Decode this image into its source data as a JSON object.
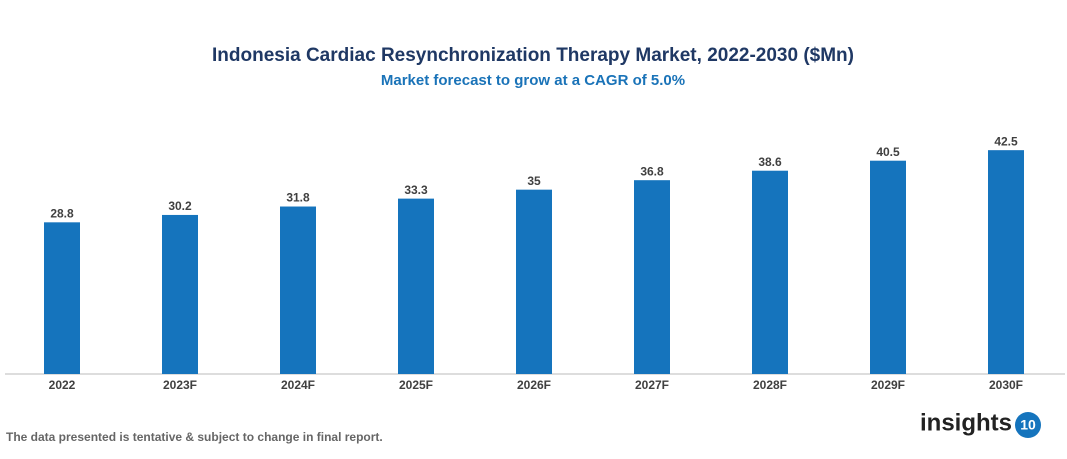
{
  "chart_data": {
    "type": "bar",
    "title": "Indonesia Cardiac Resynchronization Therapy Market, 2022-2030 ($Mn)",
    "subtitle": "Market forecast to grow at a CAGR of 5.0%",
    "categories": [
      "2022",
      "2023F",
      "2024F",
      "2025F",
      "2026F",
      "2027F",
      "2028F",
      "2029F",
      "2030F"
    ],
    "values": [
      28.8,
      30.2,
      31.8,
      33.3,
      35,
      36.8,
      38.6,
      40.5,
      42.5
    ],
    "color": "#1574bd",
    "ylim": [
      0,
      45
    ]
  },
  "footnote": "The data presented is tentative & subject to change in final report.",
  "logo": {
    "text": "insights",
    "badge": "10"
  }
}
